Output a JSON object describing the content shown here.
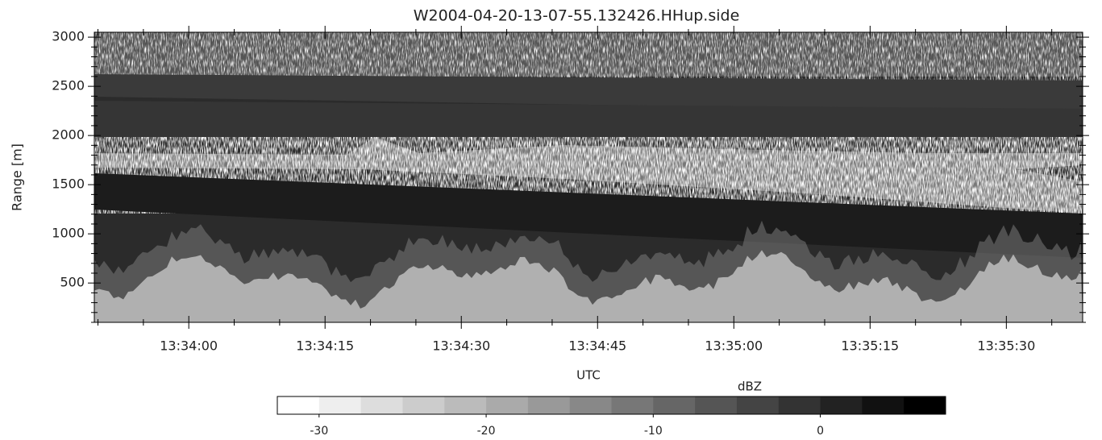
{
  "chart_data": {
    "type": "heatmap",
    "title": "W2004-04-20-13-07-55.132426.HHup.side",
    "ylabel": "Range [m]",
    "xlabel": "UTC",
    "colorbar_label": "dBZ",
    "ylim": [
      100,
      3050
    ],
    "yticks": [
      500,
      1000,
      1500,
      2000,
      2500,
      3000
    ],
    "yminorticks": [
      100,
      200,
      300,
      400,
      600,
      700,
      800,
      900,
      1100,
      1200,
      1300,
      1400,
      1600,
      1700,
      1800,
      1900,
      2100,
      2200,
      2300,
      2400,
      2600,
      2700,
      2800,
      2900
    ],
    "xlim": [
      48829.6,
      48938.4
    ],
    "xticks": [
      {
        "value": 48840,
        "label": "13:34:00"
      },
      {
        "value": 48855,
        "label": "13:34:15"
      },
      {
        "value": 48870,
        "label": "13:34:30"
      },
      {
        "value": 48885,
        "label": "13:34:45"
      },
      {
        "value": 48900,
        "label": "13:35:00"
      },
      {
        "value": 48915,
        "label": "13:35:15"
      },
      {
        "value": 48930,
        "label": "13:35:30"
      }
    ],
    "xminorticks": [
      48830,
      48835,
      48845,
      48850,
      48860,
      48865,
      48875,
      48880,
      48890,
      48895,
      48905,
      48910,
      48920,
      48925,
      48935
    ],
    "clim": [
      -32.5,
      7.5
    ],
    "clevels": 16,
    "cticks": [
      -30,
      -20,
      -10,
      0
    ]
  }
}
